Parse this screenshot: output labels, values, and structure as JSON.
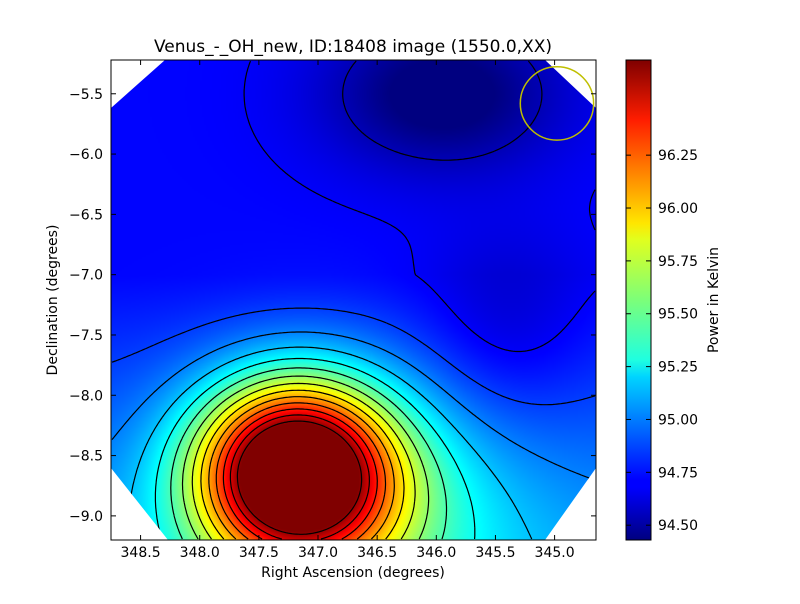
{
  "chart_data": {
    "type": "heatmap",
    "title": "Venus_-_OH_new, ID:18408 image (1550.0,XX)",
    "xlabel": "Right Ascension (degrees)",
    "ylabel": "Declination (degrees)",
    "colorbar_label": "Power in Kelvin",
    "xlim": [
      348.75,
      344.65
    ],
    "ylim": [
      -9.2,
      -5.22
    ],
    "x_ticks": [
      348.5,
      348.0,
      347.5,
      347.0,
      346.5,
      346.0,
      345.5,
      345.0
    ],
    "x_tick_labels": [
      "348.5",
      "348.0",
      "347.5",
      "347.0",
      "346.5",
      "346.0",
      "345.5",
      "345.0"
    ],
    "y_ticks": [
      -5.5,
      -6.0,
      -6.5,
      -7.0,
      -7.5,
      -8.0,
      -8.5,
      -9.0
    ],
    "y_tick_labels": [
      "−5.5",
      "−6.0",
      "−6.5",
      "−7.0",
      "−7.5",
      "−8.0",
      "−8.5",
      "−9.0"
    ],
    "colorbar_range": [
      94.43,
      96.7
    ],
    "colorbar_ticks": [
      94.5,
      94.75,
      95.0,
      95.25,
      95.5,
      95.75,
      96.0,
      96.25
    ],
    "colorbar_tick_labels": [
      "94.50",
      "94.75",
      "95.00",
      "95.25",
      "95.50",
      "95.75",
      "96.00",
      "96.25"
    ],
    "colormap": "jet",
    "peak": {
      "ra": 347.2,
      "dec": -8.62,
      "value": 96.7
    },
    "minimum": {
      "ra": 345.95,
      "dec": -5.5,
      "value": 94.45
    },
    "beam_circle": {
      "ra": 344.98,
      "dec": -5.58,
      "radius_deg": 0.31,
      "color": "#bfbf00"
    },
    "contour_color": "#000000"
  }
}
